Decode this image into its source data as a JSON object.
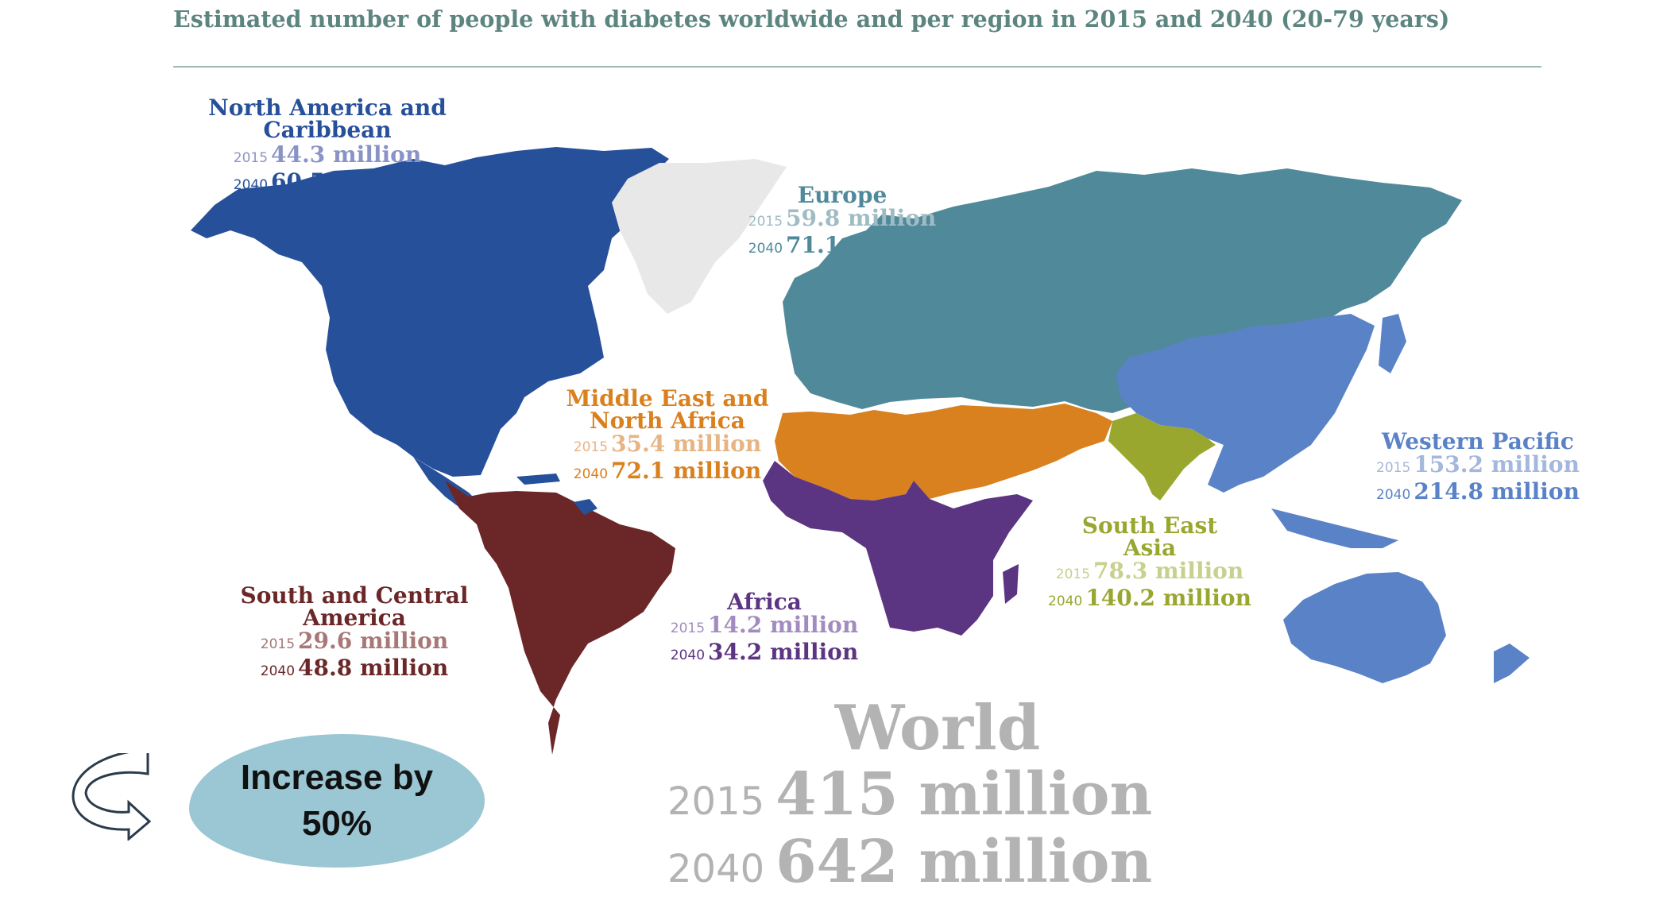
{
  "title": "Estimated number of people with diabetes worldwide and per region in 2015 and 2040 (20-79 years)",
  "year_a": "2015",
  "year_b": "2040",
  "regions": {
    "north_america": {
      "name": "North America and Caribbean",
      "v2015": "44.3 million",
      "v2040": "60.5 million",
      "color": "#27509b",
      "light": "#8a93c5"
    },
    "europe": {
      "name": "Europe",
      "v2015": "59.8 million",
      "v2040": "71.1 million",
      "color": "#508a9a",
      "light": "#9fbcc4"
    },
    "mena": {
      "name": "Middle East and North Africa",
      "v2015": "35.4 million",
      "v2040": "72.1 million",
      "color": "#d9801f",
      "light": "#e7b483"
    },
    "western_pacific": {
      "name": "Western Pacific",
      "v2015": "153.2 million",
      "v2040": "214.8 million",
      "color": "#5a83c7",
      "light": "#a4b7dd"
    },
    "south_central_america": {
      "name": "South and Central America",
      "v2015": "29.6 million",
      "v2040": "48.8 million",
      "color": "#6b2728",
      "light": "#a87777"
    },
    "africa": {
      "name": "Africa",
      "v2015": "14.2 million",
      "v2040": "34.2 million",
      "color": "#5c3582",
      "light": "#a28cbf"
    },
    "south_east_asia": {
      "name": "South East Asia",
      "v2015": "78.3 million",
      "v2040": "140.2 million",
      "color": "#99a72e",
      "light": "#c8d08d"
    }
  },
  "greenland_color": "#e8e8e8",
  "world": {
    "name": "World",
    "v2015": "415 million",
    "v2040": "642 million",
    "color": "#b3b3b3"
  },
  "callout": {
    "text": "Increase by 50%",
    "color": "#9ac7d3"
  }
}
